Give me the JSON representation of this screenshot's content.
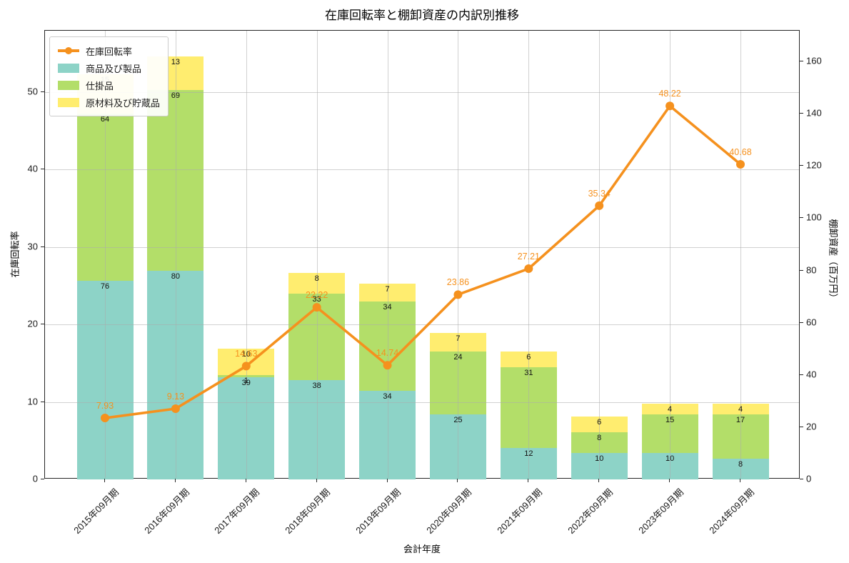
{
  "title": "在庫回転率と棚卸資産の内訳別推移",
  "axes": {
    "x_label": "会計年度",
    "y_left_label": "在庫回転率",
    "y_right_label": "棚卸資産（百万円）"
  },
  "legend": {
    "items": [
      {
        "label": "在庫回転率",
        "marker": "line",
        "color": "#f5911e"
      },
      {
        "label": "商品及び製品",
        "marker": "patch",
        "color": "#8dd3c7"
      },
      {
        "label": "仕掛品",
        "marker": "patch",
        "color": "#b3de69"
      },
      {
        "label": "原材料及び貯蔵品",
        "marker": "patch",
        "color": "#ffed6f"
      }
    ]
  },
  "chart_data": {
    "type": "bar",
    "subtype": "stacked-bars-with-line",
    "categories": [
      "2015年09月期",
      "2016年09月期",
      "2017年09月期",
      "2018年09月期",
      "2019年09月期",
      "2020年09月期",
      "2021年09月期",
      "2022年09月期",
      "2023年09月期",
      "2024年09月期"
    ],
    "series": [
      {
        "name": "商品及び製品",
        "type": "bar",
        "axis": "right",
        "color": "#8dd3c7",
        "values": [
          76,
          80,
          39,
          38,
          34,
          25,
          12,
          10,
          10,
          8
        ]
      },
      {
        "name": "仕掛品",
        "type": "bar",
        "axis": "right",
        "color": "#b3de69",
        "values": [
          64,
          69,
          1,
          33,
          34,
          24,
          31,
          8,
          15,
          17
        ]
      },
      {
        "name": "原材料及び貯蔵品",
        "type": "bar",
        "axis": "right",
        "color": "#ffed6f",
        "values": [
          15,
          13,
          10,
          8,
          7,
          7,
          6,
          6,
          4,
          4
        ]
      },
      {
        "name": "在庫回転率",
        "type": "line",
        "axis": "left",
        "color": "#f5911e",
        "values": [
          7.93,
          9.13,
          14.63,
          22.22,
          14.74,
          23.86,
          27.21,
          35.34,
          48.22,
          40.68
        ]
      }
    ],
    "y_left_ticks": [
      0,
      10,
      20,
      30,
      40,
      50
    ],
    "y_right_ticks": [
      0,
      20,
      40,
      60,
      80,
      100,
      120,
      140,
      160
    ],
    "y_left_max": 57.93,
    "y_right_max": 171.8,
    "grid": true,
    "legend_position": "upper-left",
    "bar_value_labels": true,
    "line_value_labels": true
  }
}
